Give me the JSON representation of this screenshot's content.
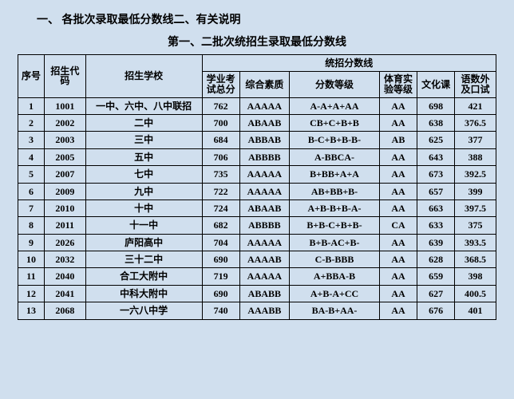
{
  "title1": "一、 各批次录取最低分数线二、有关说明",
  "title2": "第一、二批次统招生录取最低分数线",
  "colors": {
    "background": "#d0dfee",
    "border": "#000000",
    "text": "#000000"
  },
  "headers": {
    "idx": "序号",
    "code": "招生代码",
    "school": "招生学校",
    "group": "统招分数线",
    "total": "学业考试总分",
    "comp": "综合素质",
    "grade": "分数等级",
    "pe": "体育实验等级",
    "culture": "文化课",
    "lang": "语数外及口试"
  },
  "rows": [
    {
      "idx": "1",
      "code": "1001",
      "school": "一中、六中、八中联招",
      "total": "762",
      "comp": "AAAAA",
      "grade": "A-A+A+AA",
      "pe": "AA",
      "culture": "698",
      "lang": "421"
    },
    {
      "idx": "2",
      "code": "2002",
      "school": "二中",
      "total": "700",
      "comp": "ABAAB",
      "grade": "CB+C+B+B",
      "pe": "AA",
      "culture": "638",
      "lang": "376.5"
    },
    {
      "idx": "3",
      "code": "2003",
      "school": "三中",
      "total": "684",
      "comp": "ABBAB",
      "grade": "B-C+B+B-B-",
      "pe": "AB",
      "culture": "625",
      "lang": "377"
    },
    {
      "idx": "4",
      "code": "2005",
      "school": "五中",
      "total": "706",
      "comp": "ABBBB",
      "grade": "A-BBCA-",
      "pe": "AA",
      "culture": "643",
      "lang": "388"
    },
    {
      "idx": "5",
      "code": "2007",
      "school": "七中",
      "total": "735",
      "comp": "AAAAA",
      "grade": "B+BB+A+A",
      "pe": "AA",
      "culture": "673",
      "lang": "392.5"
    },
    {
      "idx": "6",
      "code": "2009",
      "school": "九中",
      "total": "722",
      "comp": "AAAAA",
      "grade": "AB+BB+B-",
      "pe": "AA",
      "culture": "657",
      "lang": "399"
    },
    {
      "idx": "7",
      "code": "2010",
      "school": "十中",
      "total": "724",
      "comp": "ABAAB",
      "grade": "A+B-B+B-A-",
      "pe": "AA",
      "culture": "663",
      "lang": "397.5"
    },
    {
      "idx": "8",
      "code": "2011",
      "school": "十一中",
      "total": "682",
      "comp": "ABBBB",
      "grade": "B+B-C+B+B-",
      "pe": "CA",
      "culture": "633",
      "lang": "375"
    },
    {
      "idx": "9",
      "code": "2026",
      "school": "庐阳高中",
      "total": "704",
      "comp": "AAAAA",
      "grade": "B+B-AC+B-",
      "pe": "AA",
      "culture": "639",
      "lang": "393.5"
    },
    {
      "idx": "10",
      "code": "2032",
      "school": "三十二中",
      "total": "690",
      "comp": "AAAAB",
      "grade": "C-B-BBB",
      "pe": "AA",
      "culture": "628",
      "lang": "368.5"
    },
    {
      "idx": "11",
      "code": "2040",
      "school": "合工大附中",
      "total": "719",
      "comp": "AAAAA",
      "grade": "A+BBA-B",
      "pe": "AA",
      "culture": "659",
      "lang": "398"
    },
    {
      "idx": "12",
      "code": "2041",
      "school": "中科大附中",
      "total": "690",
      "comp": "ABABB",
      "grade": "A+B-A+CC",
      "pe": "AA",
      "culture": "627",
      "lang": "400.5"
    },
    {
      "idx": "13",
      "code": "2068",
      "school": "一六八中学",
      "total": "740",
      "comp": "AAABB",
      "grade": "BA-B+AA-",
      "pe": "AA",
      "culture": "676",
      "lang": "401"
    }
  ]
}
